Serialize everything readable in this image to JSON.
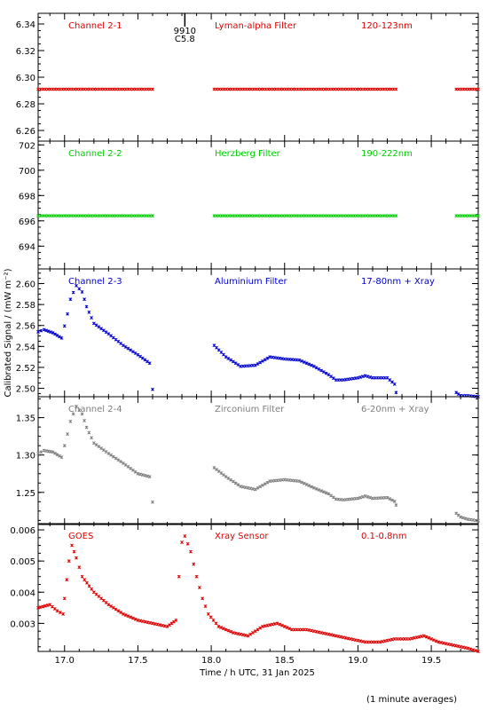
{
  "figure": {
    "xlabel": "Time / h UTC, 31 Jan 2025",
    "ylabel": "Calibrated Signal / (mW m⁻²)",
    "footnote": "(1 minute averages)",
    "marker_annotation": {
      "x": 17.82,
      "lines": [
        "9910",
        "C5.8"
      ]
    }
  },
  "chart_data": [
    {
      "type": "scatter",
      "channel_label": "Channel 2-1",
      "filter_label": "Lyman-alpha Filter",
      "band_label": "120-123nm",
      "color": "#dd0000",
      "xlim": [
        16.82,
        19.82
      ],
      "ylim": [
        6.252,
        6.348
      ],
      "yticks": [
        6.26,
        6.28,
        6.3,
        6.32,
        6.34
      ],
      "ytick_labels": [
        "6.26",
        "6.28",
        "6.30",
        "6.32",
        "6.34"
      ],
      "segments": [
        {
          "x": [
            16.82,
            17.6
          ],
          "y": [
            6.291,
            6.291
          ]
        },
        {
          "x": [
            18.02,
            19.26
          ],
          "y": [
            6.291,
            6.291
          ]
        },
        {
          "x": [
            19.67,
            19.82
          ],
          "y": [
            6.291,
            6.291
          ]
        }
      ]
    },
    {
      "type": "scatter",
      "channel_label": "Channel 2-2",
      "filter_label": "Herzberg Filter",
      "band_label": "190-222nm",
      "color": "#00cc00",
      "xlim": [
        16.82,
        19.82
      ],
      "ylim": [
        692.2,
        702.3
      ],
      "yticks": [
        694,
        696,
        698,
        700,
        702
      ],
      "ytick_labels": [
        "694",
        "696",
        "698",
        "700",
        "702"
      ],
      "segments": [
        {
          "x": [
            16.82,
            17.6
          ],
          "y": [
            696.4,
            696.4
          ]
        },
        {
          "x": [
            18.02,
            19.26
          ],
          "y": [
            696.4,
            696.4
          ]
        },
        {
          "x": [
            19.67,
            19.82
          ],
          "y": [
            696.4,
            696.4
          ]
        }
      ]
    },
    {
      "type": "scatter",
      "channel_label": "Channel 2-3",
      "filter_label": "Aluminium Filter",
      "band_label": "17-80nm + Xray",
      "color": "#0000cc",
      "xlim": [
        16.82,
        19.82
      ],
      "ylim": [
        2.492,
        2.614
      ],
      "yticks": [
        2.5,
        2.52,
        2.54,
        2.56,
        2.58,
        2.6
      ],
      "ytick_labels": [
        "2.50",
        "2.52",
        "2.54",
        "2.56",
        "2.58",
        "2.60"
      ],
      "segments": [
        {
          "x": [
            16.82,
            16.86,
            16.92,
            16.98,
            17.02,
            17.04,
            17.08,
            17.12,
            17.15,
            17.2,
            17.3,
            17.4,
            17.5,
            17.58,
            17.6
          ],
          "y": [
            2.554,
            2.556,
            2.553,
            2.548,
            2.571,
            2.585,
            2.598,
            2.592,
            2.578,
            2.562,
            2.552,
            2.541,
            2.532,
            2.524,
            2.499
          ]
        },
        {
          "x": [
            18.02,
            18.1,
            18.2,
            18.3,
            18.4,
            18.5,
            18.6,
            18.7,
            18.8,
            18.85,
            18.9,
            19.0,
            19.05,
            19.1,
            19.2,
            19.25,
            19.26
          ],
          "y": [
            2.541,
            2.53,
            2.521,
            2.522,
            2.53,
            2.528,
            2.527,
            2.521,
            2.513,
            2.508,
            2.508,
            2.51,
            2.512,
            2.51,
            2.51,
            2.504,
            2.496
          ]
        },
        {
          "x": [
            19.67,
            19.7,
            19.75,
            19.82
          ],
          "y": [
            2.496,
            2.493,
            2.493,
            2.492
          ]
        }
      ]
    },
    {
      "type": "scatter",
      "channel_label": "Channel 2-4",
      "filter_label": "Zirconium Filter",
      "band_label": "6-20nm + Xray",
      "color": "#7f7f7f",
      "xlim": [
        16.82,
        19.82
      ],
      "ylim": [
        1.207,
        1.378
      ],
      "yticks": [
        1.25,
        1.3,
        1.35
      ],
      "ytick_labels": [
        "1.25",
        "1.30",
        "1.35"
      ],
      "segments": [
        {
          "x": [
            16.82,
            16.86,
            16.92,
            16.98,
            17.02,
            17.04,
            17.08,
            17.12,
            17.15,
            17.2,
            17.3,
            17.4,
            17.5,
            17.58,
            17.6
          ],
          "y": [
            1.302,
            1.306,
            1.304,
            1.297,
            1.328,
            1.345,
            1.365,
            1.355,
            1.337,
            1.316,
            1.302,
            1.289,
            1.275,
            1.271,
            1.237
          ]
        },
        {
          "x": [
            18.02,
            18.1,
            18.2,
            18.3,
            18.4,
            18.5,
            18.6,
            18.7,
            18.8,
            18.85,
            18.9,
            19.0,
            19.05,
            19.1,
            19.2,
            19.25,
            19.26
          ],
          "y": [
            1.283,
            1.271,
            1.258,
            1.254,
            1.265,
            1.267,
            1.265,
            1.256,
            1.248,
            1.241,
            1.24,
            1.242,
            1.245,
            1.242,
            1.243,
            1.238,
            1.233
          ]
        },
        {
          "x": [
            19.67,
            19.7,
            19.75,
            19.82
          ],
          "y": [
            1.222,
            1.217,
            1.214,
            1.212
          ]
        }
      ]
    },
    {
      "type": "scatter",
      "channel_label": "GOES",
      "filter_label": "Xray Sensor",
      "band_label": "0.1-0.8nm",
      "color": "#dd0000",
      "xlim": [
        16.82,
        19.82
      ],
      "ylim": [
        0.0021,
        0.0062
      ],
      "yticks": [
        0.003,
        0.004,
        0.005,
        0.006
      ],
      "ytick_labels": [
        "0.003",
        "0.004",
        "0.005",
        "0.006"
      ],
      "xticks": [
        17.0,
        17.5,
        18.0,
        18.5,
        19.0,
        19.5
      ],
      "xtick_labels": [
        "17.0",
        "17.5",
        "18.0",
        "18.5",
        "19.0",
        "19.5"
      ],
      "segments": [
        {
          "x": [
            16.82,
            16.9,
            16.95,
            16.99,
            17.0,
            17.03,
            17.05,
            17.08,
            17.12,
            17.2,
            17.3,
            17.4,
            17.5,
            17.6,
            17.7,
            17.76,
            17.78,
            17.8,
            17.82,
            17.86,
            17.9,
            17.94,
            17.98,
            18.05,
            18.15,
            18.25,
            18.35,
            18.45,
            18.55,
            18.65,
            18.75,
            18.85,
            18.95,
            19.05,
            19.15,
            19.25,
            19.35,
            19.45,
            19.55,
            19.65,
            19.75,
            19.82
          ],
          "y": [
            0.0035,
            0.0036,
            0.0034,
            0.0033,
            0.0038,
            0.005,
            0.0055,
            0.0051,
            0.0045,
            0.004,
            0.0036,
            0.0033,
            0.0031,
            0.003,
            0.0029,
            0.0031,
            0.0045,
            0.0056,
            0.0058,
            0.0053,
            0.0045,
            0.0038,
            0.0033,
            0.0029,
            0.0027,
            0.0026,
            0.0029,
            0.003,
            0.0028,
            0.0028,
            0.0027,
            0.0026,
            0.0025,
            0.0024,
            0.0024,
            0.0025,
            0.0025,
            0.0026,
            0.0024,
            0.0023,
            0.0022,
            0.0021
          ]
        }
      ]
    }
  ]
}
